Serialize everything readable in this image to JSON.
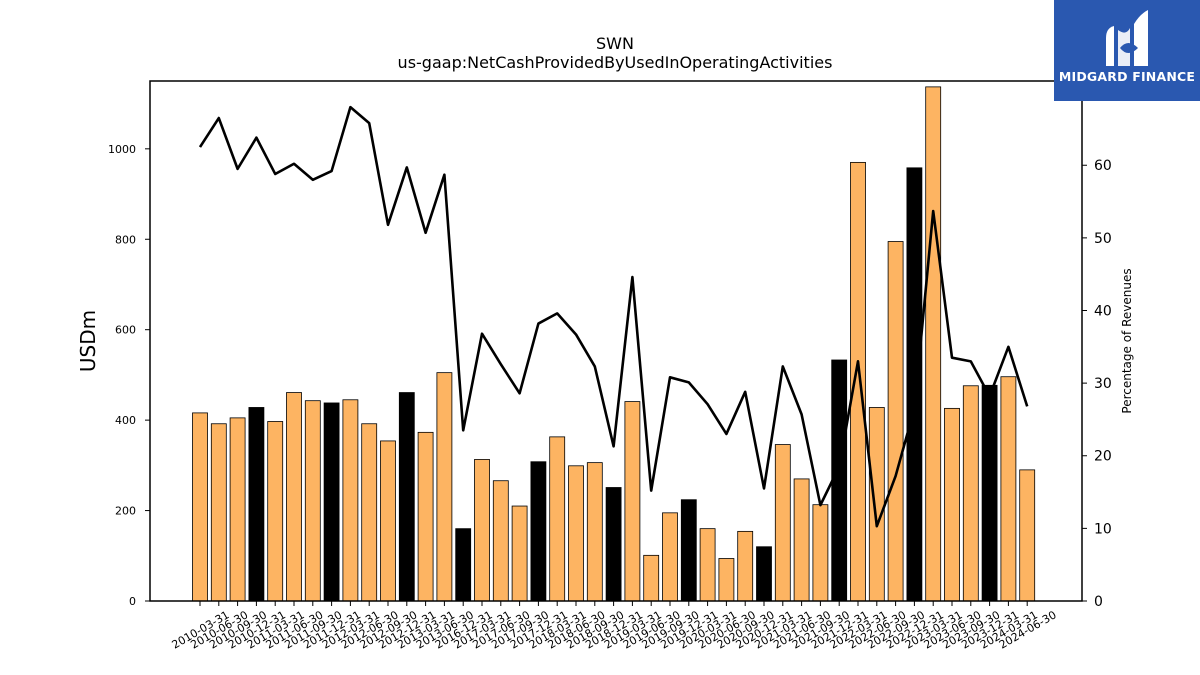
{
  "logo": {
    "text": "MIDGARD FINANCE"
  },
  "colors": {
    "bar_default": "#fdb462",
    "bar_highlight": "#000000",
    "line": "#000000",
    "logo_bg": "#2a58b0"
  },
  "chart_data": {
    "type": "bar",
    "title": "SWN",
    "subtitle": "us-gaap:NetCashProvidedByUsedInOperatingActivities",
    "ylabel": "USDm",
    "ylabel_right": "Percentage of Revenues",
    "ylim": [
      0,
      1150
    ],
    "ylim_right": [
      0,
      71.6
    ],
    "yticks": [
      0,
      200,
      400,
      600,
      800,
      1000
    ],
    "yticks_right": [
      0,
      10,
      20,
      30,
      40,
      50,
      60
    ],
    "grid": false,
    "categories": [
      "2010-03-31",
      "2010-06-30",
      "2010-09-30",
      "2010-12-31",
      "2011-03-31",
      "2011-06-30",
      "2011-09-30",
      "2011-12-31",
      "2012-03-31",
      "2012-06-30",
      "2012-09-30",
      "2012-12-31",
      "2013-03-31",
      "2013-06-30",
      "2016-12-31",
      "2017-03-31",
      "2017-06-30",
      "2017-09-30",
      "2017-12-31",
      "2018-03-31",
      "2018-06-30",
      "2018-09-30",
      "2018-12-31",
      "2019-03-31",
      "2019-06-30",
      "2019-09-30",
      "2019-12-31",
      "2020-03-31",
      "2020-06-30",
      "2020-09-30",
      "2020-12-31",
      "2021-03-31",
      "2021-06-30",
      "2021-09-30",
      "2021-12-31",
      "2022-03-31",
      "2022-06-30",
      "2022-09-30",
      "2022-12-31",
      "2023-03-31",
      "2023-06-30",
      "2023-09-30",
      "2023-12-31",
      "2024-03-31",
      "2024-06-30"
    ],
    "series": [
      {
        "type": "bar",
        "values": [
          416,
          392,
          405,
          428,
          397,
          461,
          443,
          438,
          445,
          392,
          354,
          461,
          373,
          505,
          160,
          313,
          266,
          210,
          308,
          363,
          299,
          306,
          251,
          441,
          101,
          195,
          224,
          160,
          94,
          154,
          120,
          346,
          270,
          213,
          533,
          970,
          428,
          795,
          958,
          1137,
          426,
          476,
          477,
          496,
          290
        ],
        "highlight": [
          false,
          false,
          false,
          true,
          false,
          false,
          false,
          true,
          false,
          false,
          false,
          true,
          false,
          false,
          true,
          false,
          false,
          false,
          true,
          false,
          false,
          false,
          true,
          false,
          false,
          false,
          true,
          false,
          false,
          false,
          true,
          false,
          false,
          false,
          true,
          false,
          false,
          false,
          true,
          false,
          false,
          false,
          true,
          false,
          false
        ]
      },
      {
        "type": "line",
        "axis": "right",
        "values": [
          62.5,
          66.5,
          59.5,
          63.8,
          58.8,
          60.2,
          58.0,
          59.2,
          68.0,
          65.8,
          51.8,
          59.7,
          50.7,
          58.7,
          23.5,
          36.8,
          32.6,
          28.6,
          38.2,
          39.6,
          36.7,
          32.3,
          21.3,
          44.6,
          15.2,
          30.8,
          30.1,
          27.1,
          23.0,
          28.8,
          15.5,
          32.3,
          25.7,
          13.2,
          18.5,
          33.0,
          10.3,
          17.2,
          26.5,
          53.7,
          33.5,
          33.0,
          28.2,
          35.0,
          26.8
        ]
      }
    ]
  }
}
